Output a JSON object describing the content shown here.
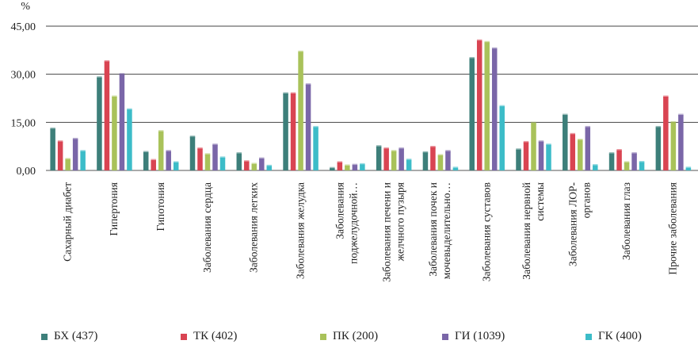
{
  "chart_data": {
    "type": "bar",
    "ylabel": "%",
    "ylim": [
      0,
      45
    ],
    "yticks": [
      "0,00",
      "15,00",
      "30,00",
      "45,00"
    ],
    "ytick_values": [
      0,
      15,
      30,
      45
    ],
    "grid": true,
    "legend_position": "bottom",
    "categories": [
      [
        "Сахарный диабет"
      ],
      [
        "Гипертония"
      ],
      [
        "Гипотония"
      ],
      [
        "Заболевания сердца"
      ],
      [
        "Заболевания легких"
      ],
      [
        "Заболевания желудка"
      ],
      [
        "Заболевания",
        "поджелудочной…"
      ],
      [
        "Заболевания печени и",
        "желчного пузыря"
      ],
      [
        "Заболевания почек и",
        "мочевыделительно…"
      ],
      [
        "Заболевания суставов"
      ],
      [
        "Заболевания нервной",
        "системы"
      ],
      [
        "Заболевания ЛОР-",
        "органов"
      ],
      [
        "Заболевания глаз"
      ],
      [
        "Прочие заболевания"
      ]
    ],
    "series": [
      {
        "name": "БХ (437)",
        "color": "#3d7f7a",
        "values": [
          13.0,
          29.0,
          5.7,
          10.5,
          5.3,
          24.0,
          0.7,
          7.5,
          5.6,
          35.0,
          6.5,
          17.3,
          5.3,
          13.5
        ]
      },
      {
        "name": "ТК (402)",
        "color": "#d94452",
        "values": [
          9.0,
          34.0,
          3.2,
          6.8,
          2.8,
          24.0,
          2.5,
          6.8,
          7.3,
          40.5,
          8.8,
          11.3,
          6.3,
          23.0
        ]
      },
      {
        "name": "ПК (200)",
        "color": "#a9c25a",
        "values": [
          3.5,
          23.0,
          12.2,
          5.0,
          2.0,
          37.0,
          1.5,
          6.0,
          4.7,
          40.0,
          14.8,
          9.5,
          2.5,
          15.0
        ]
      },
      {
        "name": "ГИ (1039)",
        "color": "#7a66a8",
        "values": [
          9.8,
          30.0,
          6.0,
          8.0,
          3.7,
          26.8,
          1.7,
          6.8,
          6.0,
          38.0,
          9.0,
          13.5,
          5.3,
          17.3
        ]
      },
      {
        "name": "ГК (400)",
        "color": "#3cbcc8",
        "values": [
          6.0,
          19.0,
          2.5,
          4.0,
          1.4,
          13.5,
          1.9,
          3.3,
          0.8,
          20.0,
          8.0,
          1.6,
          2.6,
          0.8
        ]
      }
    ]
  }
}
